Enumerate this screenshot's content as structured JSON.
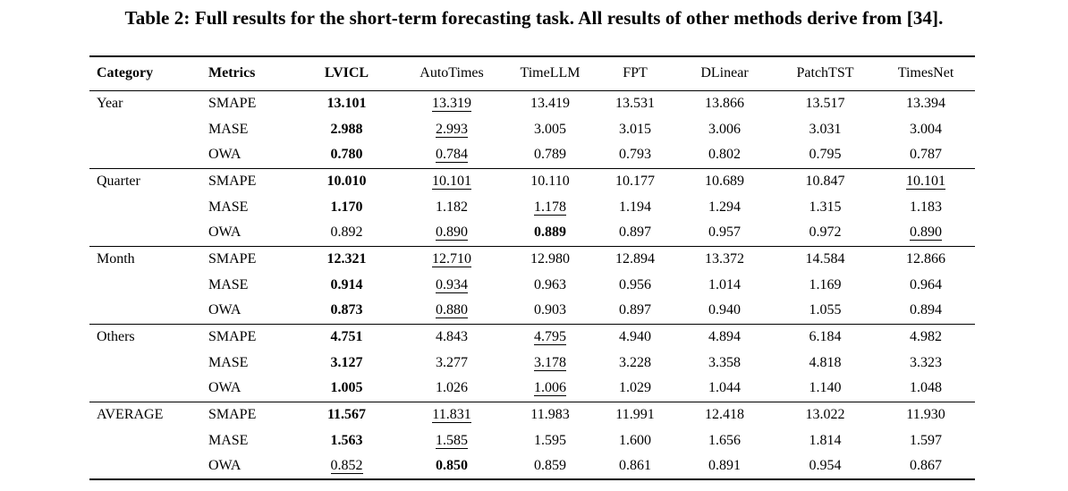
{
  "caption": "Table 2: Full results for the short-term forecasting task. All results of other methods derive from [34].",
  "table": {
    "columns": [
      "Category",
      "Metrics",
      "LVICL",
      "AutoTimes",
      "TimeLLM",
      "FPT",
      "DLinear",
      "PatchTST",
      "TimesNet"
    ],
    "header_bold": [
      true,
      true,
      true,
      false,
      false,
      false,
      false,
      false,
      false
    ],
    "groups": [
      {
        "category": "Year",
        "rows": [
          {
            "metric": "SMAPE",
            "values": [
              "13.101",
              "13.319",
              "13.419",
              "13.531",
              "13.866",
              "13.517",
              "13.394"
            ],
            "styles": [
              "b",
              "u",
              "",
              "",
              "",
              "",
              ""
            ]
          },
          {
            "metric": "MASE",
            "values": [
              "2.988",
              "2.993",
              "3.005",
              "3.015",
              "3.006",
              "3.031",
              "3.004"
            ],
            "styles": [
              "b",
              "u",
              "",
              "",
              "",
              "",
              ""
            ]
          },
          {
            "metric": "OWA",
            "values": [
              "0.780",
              "0.784",
              "0.789",
              "0.793",
              "0.802",
              "0.795",
              "0.787"
            ],
            "styles": [
              "b",
              "u",
              "",
              "",
              "",
              "",
              ""
            ]
          }
        ]
      },
      {
        "category": "Quarter",
        "rows": [
          {
            "metric": "SMAPE",
            "values": [
              "10.010",
              "10.101",
              "10.110",
              "10.177",
              "10.689",
              "10.847",
              "10.101"
            ],
            "styles": [
              "b",
              "u",
              "",
              "",
              "",
              "",
              "u"
            ]
          },
          {
            "metric": "MASE",
            "values": [
              "1.170",
              "1.182",
              "1.178",
              "1.194",
              "1.294",
              "1.315",
              "1.183"
            ],
            "styles": [
              "b",
              "",
              "u",
              "",
              "",
              "",
              ""
            ]
          },
          {
            "metric": "OWA",
            "values": [
              "0.892",
              "0.890",
              "0.889",
              "0.897",
              "0.957",
              "0.972",
              "0.890"
            ],
            "styles": [
              "",
              "u",
              "b",
              "",
              "",
              "",
              "u"
            ]
          }
        ]
      },
      {
        "category": "Month",
        "rows": [
          {
            "metric": "SMAPE",
            "values": [
              "12.321",
              "12.710",
              "12.980",
              "12.894",
              "13.372",
              "14.584",
              "12.866"
            ],
            "styles": [
              "b",
              "u",
              "",
              "",
              "",
              "",
              ""
            ]
          },
          {
            "metric": "MASE",
            "values": [
              "0.914",
              "0.934",
              "0.963",
              "0.956",
              "1.014",
              "1.169",
              "0.964"
            ],
            "styles": [
              "b",
              "u",
              "",
              "",
              "",
              "",
              ""
            ]
          },
          {
            "metric": "OWA",
            "values": [
              "0.873",
              "0.880",
              "0.903",
              "0.897",
              "0.940",
              "1.055",
              "0.894"
            ],
            "styles": [
              "b",
              "u",
              "",
              "",
              "",
              "",
              ""
            ]
          }
        ]
      },
      {
        "category": "Others",
        "rows": [
          {
            "metric": "SMAPE",
            "values": [
              "4.751",
              "4.843",
              "4.795",
              "4.940",
              "4.894",
              "6.184",
              "4.982"
            ],
            "styles": [
              "b",
              "",
              "u",
              "",
              "",
              "",
              ""
            ]
          },
          {
            "metric": "MASE",
            "values": [
              "3.127",
              "3.277",
              "3.178",
              "3.228",
              "3.358",
              "4.818",
              "3.323"
            ],
            "styles": [
              "b",
              "",
              "u",
              "",
              "",
              "",
              ""
            ]
          },
          {
            "metric": "OWA",
            "values": [
              "1.005",
              "1.026",
              "1.006",
              "1.029",
              "1.044",
              "1.140",
              "1.048"
            ],
            "styles": [
              "b",
              "",
              "u",
              "",
              "",
              "",
              ""
            ]
          }
        ]
      },
      {
        "category": "AVERAGE",
        "rows": [
          {
            "metric": "SMAPE",
            "values": [
              "11.567",
              "11.831",
              "11.983",
              "11.991",
              "12.418",
              "13.022",
              "11.930"
            ],
            "styles": [
              "b",
              "u",
              "",
              "",
              "",
              "",
              ""
            ]
          },
          {
            "metric": "MASE",
            "values": [
              "1.563",
              "1.585",
              "1.595",
              "1.600",
              "1.656",
              "1.814",
              "1.597"
            ],
            "styles": [
              "b",
              "u",
              "",
              "",
              "",
              "",
              ""
            ]
          },
          {
            "metric": "OWA",
            "values": [
              "0.852",
              "0.850",
              "0.859",
              "0.861",
              "0.891",
              "0.954",
              "0.867"
            ],
            "styles": [
              "u",
              "b",
              "",
              "",
              "",
              "",
              ""
            ]
          }
        ]
      }
    ]
  }
}
